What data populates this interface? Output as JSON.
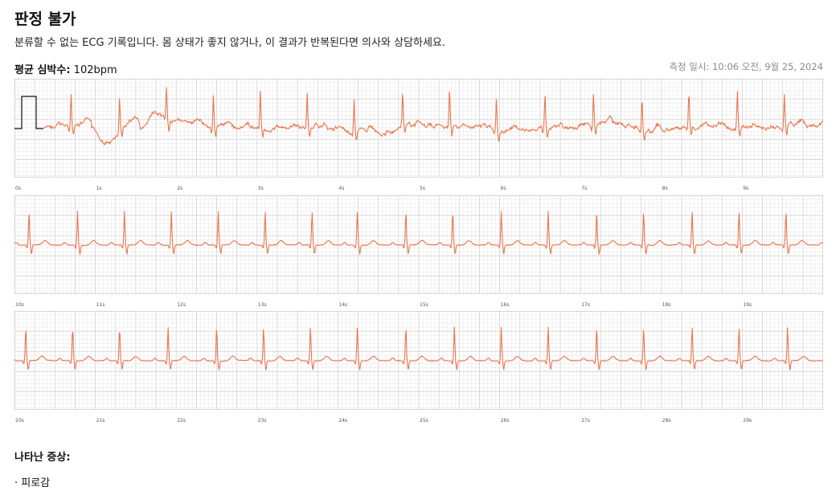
{
  "header": {
    "title": "판정 불가",
    "description": "분류할 수 없는 ECG 기록입니다. 몸 상태가 좋지 않거나, 이 결과가 반복된다면 의사와 상담하세요.",
    "heart_rate_label": "평균 심박수:",
    "heart_rate_value": "102bpm",
    "measured_at": "측정 일시: 10:06 오전, 9월 25, 2024"
  },
  "colors": {
    "trace": "#e8764c",
    "grid_minor": "#e6e6e6",
    "grid_major": "#cfcfcf",
    "axis_text": "#555555"
  },
  "chart_data": {
    "type": "line",
    "heart_rate_bpm": 102,
    "strips": [
      {
        "t_start": 0,
        "t_end": 10,
        "ticks": [
          "0s",
          "1s",
          "2s",
          "3s",
          "4s",
          "5s",
          "6s",
          "7s",
          "8s",
          "9s"
        ]
      },
      {
        "t_start": 10,
        "t_end": 20,
        "ticks": [
          "10s",
          "11s",
          "12s",
          "13s",
          "14s",
          "15s",
          "16s",
          "17s",
          "18s",
          "19s"
        ]
      },
      {
        "t_start": 20,
        "t_end": 30,
        "ticks": [
          "20s",
          "21s",
          "22s",
          "23s",
          "24s",
          "25s",
          "26s",
          "27s",
          "28s",
          "29s"
        ]
      }
    ],
    "beats_s": [
      0.7,
      1.3,
      1.88,
      2.46,
      3.04,
      3.62,
      4.2,
      4.8,
      5.38,
      5.96,
      6.56,
      7.16,
      7.76,
      8.34,
      8.94,
      9.52,
      10.18,
      10.78,
      11.36,
      11.94,
      12.52,
      13.1,
      13.68,
      14.24,
      14.84,
      15.42,
      16.02,
      16.6,
      17.2,
      17.78,
      18.38,
      18.96,
      19.54,
      20.14,
      20.72,
      21.3,
      21.9,
      22.5,
      23.08,
      23.66,
      24.24,
      24.84,
      25.44,
      26.02,
      26.6,
      27.2,
      27.78,
      28.38,
      28.96,
      29.56
    ],
    "grid": true
  },
  "symptoms": {
    "title": "나타난 증상:",
    "items": [
      "피로감"
    ]
  }
}
